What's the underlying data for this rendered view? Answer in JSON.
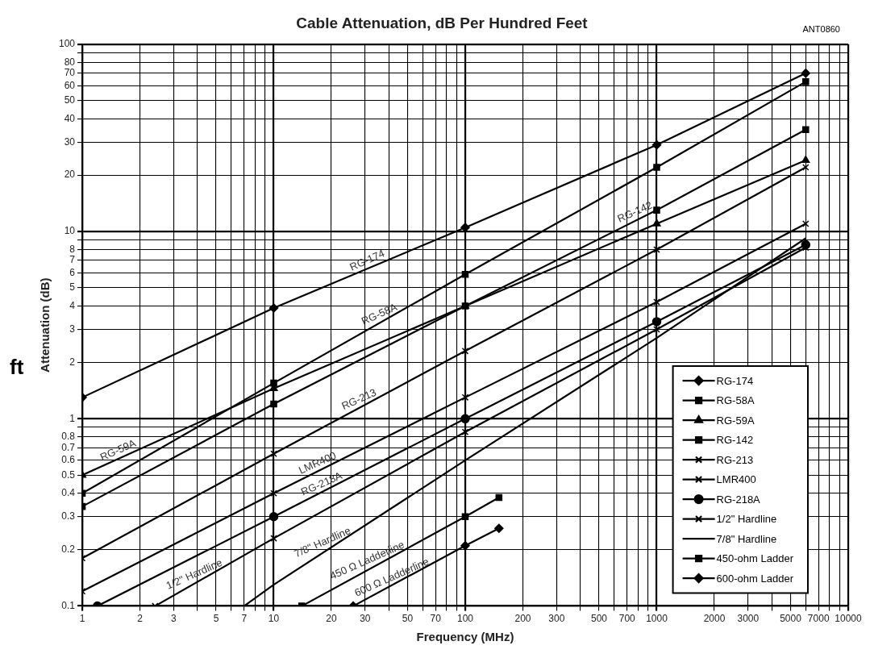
{
  "chart_data": {
    "type": "line",
    "title": "Cable Attenuation, dB Per Hundred Feet",
    "xlabel": "Frequency (MHz)",
    "ylabel": "Attenuation (dB)",
    "log": "xy",
    "grid": true,
    "legend": "bottom right",
    "x": [
      1,
      10,
      100,
      1000,
      6000
    ],
    "xlim": [
      1,
      10000
    ],
    "ylim": [
      0.1,
      100
    ],
    "xticks": [
      1,
      2,
      3,
      {
        "value": 4,
        "label": null
      },
      5,
      {
        "value": 6,
        "label": null
      },
      7,
      {
        "value": 8,
        "label": null
      },
      {
        "value": 9,
        "label": null
      },
      10,
      20,
      30,
      {
        "value": 40,
        "label": null
      },
      50,
      {
        "value": 60,
        "label": null
      },
      70,
      {
        "value": 80,
        "label": null
      },
      {
        "value": 90,
        "label": null
      },
      100,
      200,
      300,
      {
        "value": 400,
        "label": null
      },
      500,
      {
        "value": 600,
        "label": null
      },
      700,
      {
        "value": 800,
        "label": null
      },
      {
        "value": 900,
        "label": null
      },
      1000,
      2000,
      3000,
      {
        "value": 4000,
        "label": null
      },
      5000,
      {
        "value": 6000,
        "label": null
      },
      7000,
      {
        "value": 8000,
        "label": null
      },
      {
        "value": 9000,
        "label": null
      },
      10000
    ],
    "yticks": [
      0.1,
      0.2,
      0.3,
      0.4,
      0.5,
      0.6,
      0.7,
      0.8,
      {
        "value": 0.9,
        "label": null
      },
      1,
      2,
      3,
      4,
      5,
      6,
      7,
      8,
      {
        "value": 9,
        "label": null
      },
      10,
      20,
      30,
      40,
      50,
      60,
      70,
      80,
      {
        "value": 90,
        "label": null
      },
      100
    ],
    "series": [
      {
        "name": "RG-174",
        "color": "#000000",
        "marker": "diamond",
        "values": [
          1.3,
          3.9,
          10.5,
          29,
          70
        ]
      },
      {
        "name": "RG-58A",
        "color": "#000000",
        "marker": "square",
        "values": [
          0.4,
          1.55,
          5.9,
          22,
          63
        ]
      },
      {
        "name": "RG-59A",
        "color": "#000000",
        "marker": "triangle",
        "values": [
          0.5,
          1.45,
          4,
          11,
          24
        ]
      },
      {
        "name": "RG-142",
        "color": "#000000",
        "marker": "square",
        "values": [
          0.34,
          1.2,
          4,
          13,
          35
        ]
      },
      {
        "name": "RG-213",
        "color": "#000000",
        "marker": "cross",
        "values": [
          0.18,
          0.65,
          2.3,
          8,
          22
        ]
      },
      {
        "name": "LMR400",
        "color": "#000000",
        "marker": "cross",
        "values": [
          0.12,
          0.4,
          1.3,
          4.2,
          11
        ]
      },
      {
        "name": "RG-218A",
        "color": "#000000",
        "marker": "circle",
        "x": [
          1.2,
          10,
          100,
          1000,
          6000
        ],
        "values": [
          0.1,
          0.3,
          1,
          3.3,
          8.5
        ]
      },
      {
        "name": "1/2\" Hardline",
        "color": "#000000",
        "marker": "cross",
        "x": [
          2.4,
          10,
          100,
          1000,
          6000
        ],
        "values": [
          0.1,
          0.23,
          0.85,
          3,
          8.2
        ]
      },
      {
        "name": "7/8\" Hardline",
        "color": "#000000",
        "marker": "none",
        "x": [
          7,
          10,
          100,
          1000,
          6000
        ],
        "values": [
          0.1,
          0.13,
          0.6,
          2.7,
          9.2
        ]
      },
      {
        "name": "450-ohm Ladder",
        "color": "#000000",
        "marker": "square",
        "x": [
          14,
          100,
          150
        ],
        "values": [
          0.1,
          0.3,
          0.38
        ]
      },
      {
        "name": "600-ohm Ladder",
        "color": "#000000",
        "marker": "diamond",
        "x": [
          26,
          100,
          150
        ],
        "values": [
          0.1,
          0.21,
          0.26
        ]
      }
    ],
    "annotations": [
      "ANT0860",
      "ft",
      {
        "text": "RG-174",
        "x": 32,
        "y": 6.4
      },
      {
        "text": "RG-58A",
        "x": 37,
        "y": 3.3
      },
      {
        "text": "RG-142",
        "x": 800,
        "y": 11.6
      },
      {
        "text": "RG-213",
        "x": 29,
        "y": 1.16
      },
      {
        "text": "RG-59A",
        "x": 1.6,
        "y": 0.62
      },
      {
        "text": "LMR400",
        "x": 17.6,
        "y": 0.53
      },
      {
        "text": "RG-218A",
        "x": 18.5,
        "y": 0.41
      },
      {
        "text": "1/2\" Hardline",
        "x": 4,
        "y": 0.135
      },
      {
        "text": "7/8\" Hardline",
        "x": 18.7,
        "y": 0.2
      },
      {
        "text": "450 Ω Ladderline",
        "x": 32,
        "y": 0.16
      },
      {
        "text": "600 Ω Ladderline",
        "x": 43,
        "y": 0.13
      }
    ]
  }
}
